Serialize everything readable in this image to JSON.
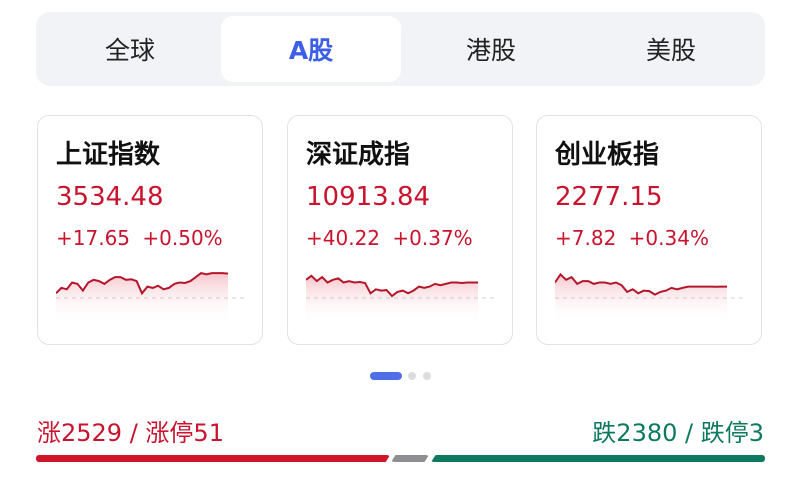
{
  "tabs": [
    {
      "label": "全球"
    },
    {
      "label": "A股",
      "active": true
    },
    {
      "label": "港股"
    },
    {
      "label": "美股"
    }
  ],
  "indices": [
    {
      "name": "上证指数",
      "price": "3534.48",
      "change": "+17.65",
      "pct": "+0.50%",
      "spark": [
        0.1,
        0.3,
        0.25,
        0.5,
        0.45,
        0.2,
        0.5,
        0.6,
        0.55,
        0.45,
        0.6,
        0.7,
        0.7,
        0.6,
        0.62,
        0.55,
        0.1,
        0.35,
        0.3,
        0.38,
        0.25,
        0.3,
        0.45,
        0.5,
        0.48,
        0.55,
        0.7,
        0.85,
        0.8,
        0.85,
        0.85,
        0.85,
        0.83
      ]
    },
    {
      "name": "深证成指",
      "price": "10913.84",
      "change": "+40.22",
      "pct": "+0.37%",
      "spark": [
        0.6,
        0.75,
        0.55,
        0.7,
        0.5,
        0.6,
        0.65,
        0.5,
        0.55,
        0.5,
        0.52,
        0.48,
        0.1,
        0.25,
        0.2,
        0.22,
        0.0,
        0.15,
        0.2,
        0.1,
        0.2,
        0.35,
        0.3,
        0.35,
        0.45,
        0.4,
        0.45,
        0.5,
        0.5,
        0.48,
        0.5,
        0.5,
        0.5
      ]
    },
    {
      "name": "创业板指",
      "price": "2277.15",
      "change": "+7.82",
      "pct": "+0.34%",
      "spark": [
        0.5,
        0.8,
        0.6,
        0.7,
        0.45,
        0.55,
        0.55,
        0.45,
        0.5,
        0.5,
        0.45,
        0.5,
        0.4,
        0.15,
        0.25,
        0.1,
        0.2,
        0.18,
        0.05,
        0.15,
        0.2,
        0.3,
        0.25,
        0.3,
        0.35,
        0.35,
        0.35,
        0.35,
        0.35,
        0.34,
        0.35,
        0.35
      ]
    }
  ],
  "pager": {
    "count": 3,
    "active": 0
  },
  "breadth": {
    "up": "涨2529 / 涨停51",
    "down": "跌2380 / 跌停3",
    "up_count": 2529,
    "flat_ratio": 0.1,
    "down_count": 2380
  },
  "colors": {
    "up": "#c8142e",
    "down": "#0d7a5f",
    "accent": "#3d5ee6",
    "flat": "#8e8e93"
  }
}
